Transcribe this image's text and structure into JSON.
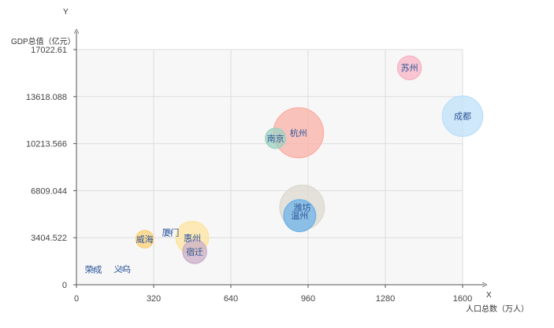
{
  "chart_data": {
    "type": "scatter",
    "subtype": "bubble",
    "xlabel": "人口总数（万人）",
    "ylabel": "GDP总值（亿元）",
    "x_axis_letter": "X",
    "y_axis_letter": "Y",
    "xlim": [
      0,
      1600
    ],
    "ylim": [
      0,
      17022.61
    ],
    "x_ticks": [
      0,
      320,
      640,
      960,
      1280,
      1600
    ],
    "y_ticks": [
      "0",
      "3404.522",
      "6809.044",
      "10213.566",
      "13618.088",
      "17022.61"
    ],
    "grid": true,
    "points": [
      {
        "name": "荣成",
        "x": 70,
        "y": 1100,
        "size": 0.3,
        "color": "#9fb8d9"
      },
      {
        "name": "义乌",
        "x": 190,
        "y": 1150,
        "size": 0.6,
        "color": "#9fb8d9"
      },
      {
        "name": "威海",
        "x": 283,
        "y": 3300,
        "size": 12,
        "color": "#fcd27a"
      },
      {
        "name": "厦门",
        "x": 390,
        "y": 3800,
        "size": 0.5,
        "color": "#9fb8d9"
      },
      {
        "name": "惠州",
        "x": 480,
        "y": 3400,
        "size": 42,
        "color": "#fde4a0"
      },
      {
        "name": "宿迁",
        "x": 490,
        "y": 2400,
        "size": 22,
        "color": "#cbb0c8"
      },
      {
        "name": "南京",
        "x": 825,
        "y": 10600,
        "size": 16,
        "color": "#9ed2c3"
      },
      {
        "name": "杭州",
        "x": 920,
        "y": 11000,
        "size": 98,
        "color": "#fab2a8"
      },
      {
        "name": "潍坊",
        "x": 935,
        "y": 5600,
        "size": 78,
        "color": "#dedad0"
      },
      {
        "name": "温州",
        "x": 925,
        "y": 5000,
        "size": 40,
        "color": "#6fb3e8"
      },
      {
        "name": "苏州",
        "x": 1380,
        "y": 15700,
        "size": 22,
        "color": "#f7b6c5"
      },
      {
        "name": "成都",
        "x": 1600,
        "y": 12200,
        "size": 64,
        "color": "#bfe1fa"
      }
    ]
  }
}
